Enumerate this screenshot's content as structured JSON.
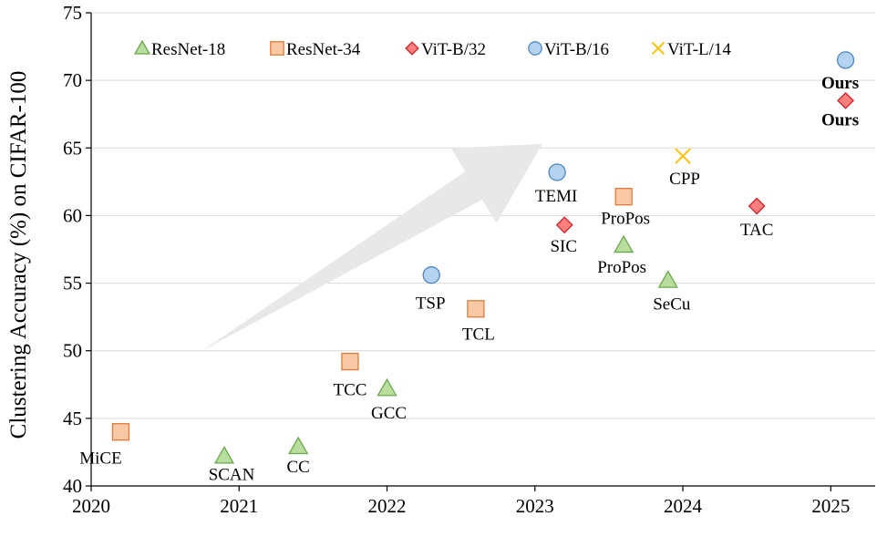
{
  "chart_data": {
    "type": "scatter",
    "title": "",
    "xlabel": "",
    "ylabel": "Clustering Accuracy (%) on CIFAR-100",
    "xlim": [
      2020,
      2025.3
    ],
    "ylim": [
      40,
      75
    ],
    "xticks": [
      2020,
      2021,
      2022,
      2023,
      2024,
      2025
    ],
    "yticks": [
      40,
      45,
      50,
      55,
      60,
      65,
      70,
      75
    ],
    "grid": "horizontal",
    "legend_position": "top",
    "series": [
      {
        "name": "ResNet-18",
        "marker": "triangle",
        "fill": "#b9dd9c",
        "stroke": "#6aa84f",
        "points": [
          {
            "x": 2020.9,
            "y": 42.2,
            "label": "SCAN"
          },
          {
            "x": 2021.4,
            "y": 42.9,
            "label": "CC"
          },
          {
            "x": 2022.0,
            "y": 47.2,
            "label": "GCC"
          },
          {
            "x": 2023.6,
            "y": 57.8,
            "label": "ProPos"
          },
          {
            "x": 2023.9,
            "y": 55.2,
            "label": "SeCu"
          }
        ]
      },
      {
        "name": "ResNet-34",
        "marker": "square",
        "fill": "#f8c9a4",
        "stroke": "#e07b39",
        "points": [
          {
            "x": 2020.2,
            "y": 44.0,
            "label": "MiCE"
          },
          {
            "x": 2021.75,
            "y": 49.2,
            "label": "TCC"
          },
          {
            "x": 2022.6,
            "y": 53.1,
            "label": "TCL"
          },
          {
            "x": 2023.6,
            "y": 61.4,
            "label": "ProPos"
          }
        ]
      },
      {
        "name": "ViT-B/32",
        "marker": "diamond",
        "fill": "#ff7f7f",
        "stroke": "#d0212a",
        "points": [
          {
            "x": 2023.2,
            "y": 59.3,
            "label": "SIC"
          },
          {
            "x": 2024.5,
            "y": 60.7,
            "label": "TAC"
          },
          {
            "x": 2025.1,
            "y": 68.5,
            "label": "Ours"
          }
        ]
      },
      {
        "name": "ViT-B/16",
        "marker": "circle",
        "fill": "#b5d3f0",
        "stroke": "#4a86c5",
        "points": [
          {
            "x": 2022.3,
            "y": 55.6,
            "label": "TSP"
          },
          {
            "x": 2023.15,
            "y": 63.2,
            "label": "TEMI"
          },
          {
            "x": 2025.1,
            "y": 71.5,
            "label": "Ours"
          }
        ]
      },
      {
        "name": "ViT-L/14",
        "marker": "x",
        "fill": "none",
        "stroke": "#ffc000",
        "points": [
          {
            "x": 2024.0,
            "y": 64.4,
            "label": "CPP"
          }
        ]
      }
    ],
    "annotations": [
      {
        "type": "arrow",
        "from": {
          "x": 2020.75,
          "y": 50.0
        },
        "to": {
          "x": 2023.05,
          "y": 65.3
        },
        "color": "#e8e8e8"
      }
    ]
  }
}
